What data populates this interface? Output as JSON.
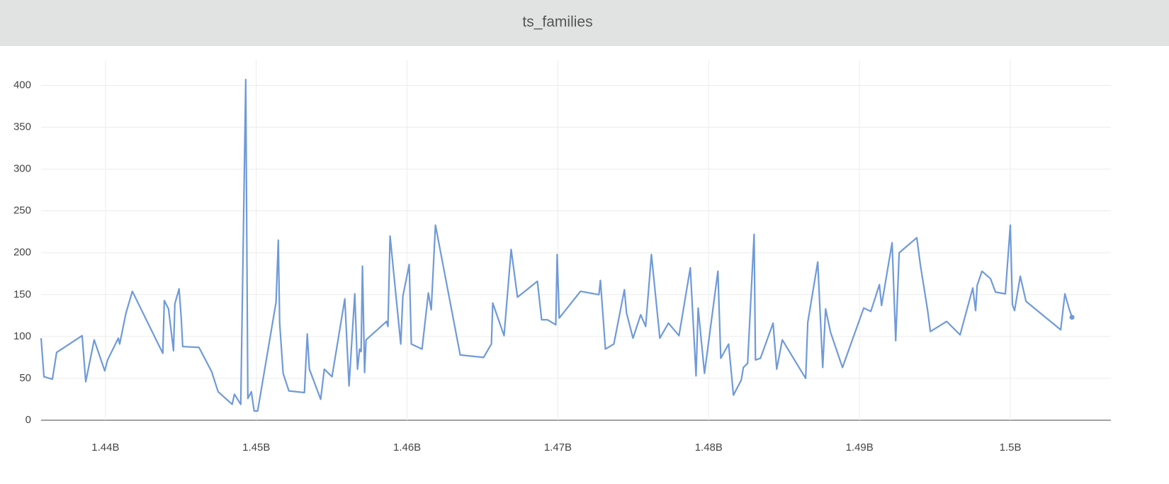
{
  "chart_data": {
    "type": "line",
    "title": "ts_families",
    "x": [
      1435730000,
      1435920000,
      1436480000,
      1436760000,
      1438450000,
      1438690000,
      1439250000,
      1439950000,
      1440140000,
      1440850000,
      1440940000,
      1441360000,
      1441780000,
      1443800000,
      1443900000,
      1444180000,
      1444510000,
      1444600000,
      1444880000,
      1445020000,
      1445120000,
      1446200000,
      1447040000,
      1447470000,
      1448400000,
      1448550000,
      1448970000,
      1449300000,
      1449440000,
      1449670000,
      1449860000,
      1450090000,
      1451310000,
      1451460000,
      1451550000,
      1451780000,
      1452160000,
      1453190000,
      1453380000,
      1453520000,
      1454270000,
      1454510000,
      1455020000,
      1455870000,
      1456150000,
      1456530000,
      1456710000,
      1456850000,
      1456950000,
      1457040000,
      1457180000,
      1457280000,
      1458640000,
      1458730000,
      1458870000,
      1459580000,
      1459720000,
      1460140000,
      1460280000,
      1460990000,
      1461410000,
      1461600000,
      1461880000,
      1463520000,
      1465070000,
      1465590000,
      1465680000,
      1466430000,
      1466900000,
      1467320000,
      1468640000,
      1468920000,
      1469300000,
      1469860000,
      1469950000,
      1470090000,
      1471500000,
      1472720000,
      1472820000,
      1473150000,
      1473710000,
      1474410000,
      1474550000,
      1474980000,
      1475490000,
      1475820000,
      1476200000,
      1476760000,
      1477330000,
      1478030000,
      1478780000,
      1479160000,
      1479300000,
      1479720000,
      1480610000,
      1480800000,
      1481320000,
      1481640000,
      1482160000,
      1482300000,
      1482580000,
      1483010000,
      1483100000,
      1483430000,
      1484270000,
      1484510000,
      1484880000,
      1486430000,
      1486570000,
      1487230000,
      1487560000,
      1487750000,
      1488080000,
      1488870000,
      1490280000,
      1490750000,
      1491320000,
      1491460000,
      1492160000,
      1492400000,
      1492630000,
      1493800000,
      1494040000,
      1494510000,
      1494700000,
      1495780000,
      1496670000,
      1497510000,
      1497700000,
      1497800000,
      1498120000,
      1498690000,
      1499020000,
      1499670000,
      1500000000,
      1500140000,
      1500280000,
      1500660000,
      1501040000,
      1503340000,
      1503620000,
      1503900000,
      1504090000
    ],
    "series": [
      {
        "color": "#6f9ad8",
        "values": [
          98,
          52,
          49,
          81,
          101,
          46,
          96,
          59,
          72,
          98,
          91,
          128,
          154,
          80,
          143,
          133,
          83,
          139,
          157,
          123,
          88,
          87,
          58,
          34,
          19,
          31,
          19,
          407,
          26,
          34,
          11,
          11,
          141,
          215,
          116,
          56,
          35,
          33,
          103,
          61,
          25,
          61,
          52,
          145,
          41,
          151,
          61,
          85,
          82,
          184,
          57,
          96,
          118,
          112,
          220,
          91,
          148,
          186,
          91,
          85,
          152,
          132,
          233,
          78,
          75,
          91,
          140,
          101,
          204,
          147,
          166,
          120,
          120,
          114,
          198,
          122,
          154,
          150,
          167,
          85,
          91,
          156,
          128,
          98,
          126,
          112,
          198,
          98,
          116,
          101,
          182,
          53,
          134,
          56,
          178,
          74,
          91,
          30,
          48,
          63,
          68,
          222,
          72,
          74,
          116,
          61,
          96,
          50,
          117,
          189,
          63,
          133,
          105,
          63,
          134,
          130,
          162,
          137,
          212,
          95,
          200,
          218,
          185,
          132,
          106,
          118,
          102,
          158,
          131,
          161,
          178,
          169,
          153,
          151,
          233,
          138,
          131,
          172,
          142,
          108,
          151,
          133,
          123
        ]
      }
    ],
    "xlim": [
      1435730000,
      1506670000
    ],
    "ylim": [
      0,
      430
    ],
    "xticks": [
      {
        "value": 1440000000,
        "label": "1.44B"
      },
      {
        "value": 1450000000,
        "label": "1.45B"
      },
      {
        "value": 1460000000,
        "label": "1.46B"
      },
      {
        "value": 1470000000,
        "label": "1.47B"
      },
      {
        "value": 1480000000,
        "label": "1.48B"
      },
      {
        "value": 1490000000,
        "label": "1.49B"
      },
      {
        "value": 1500000000,
        "label": "1.5B"
      }
    ],
    "yticks": [
      0,
      50,
      100,
      150,
      200,
      250,
      300,
      350,
      400
    ],
    "grid": true
  }
}
